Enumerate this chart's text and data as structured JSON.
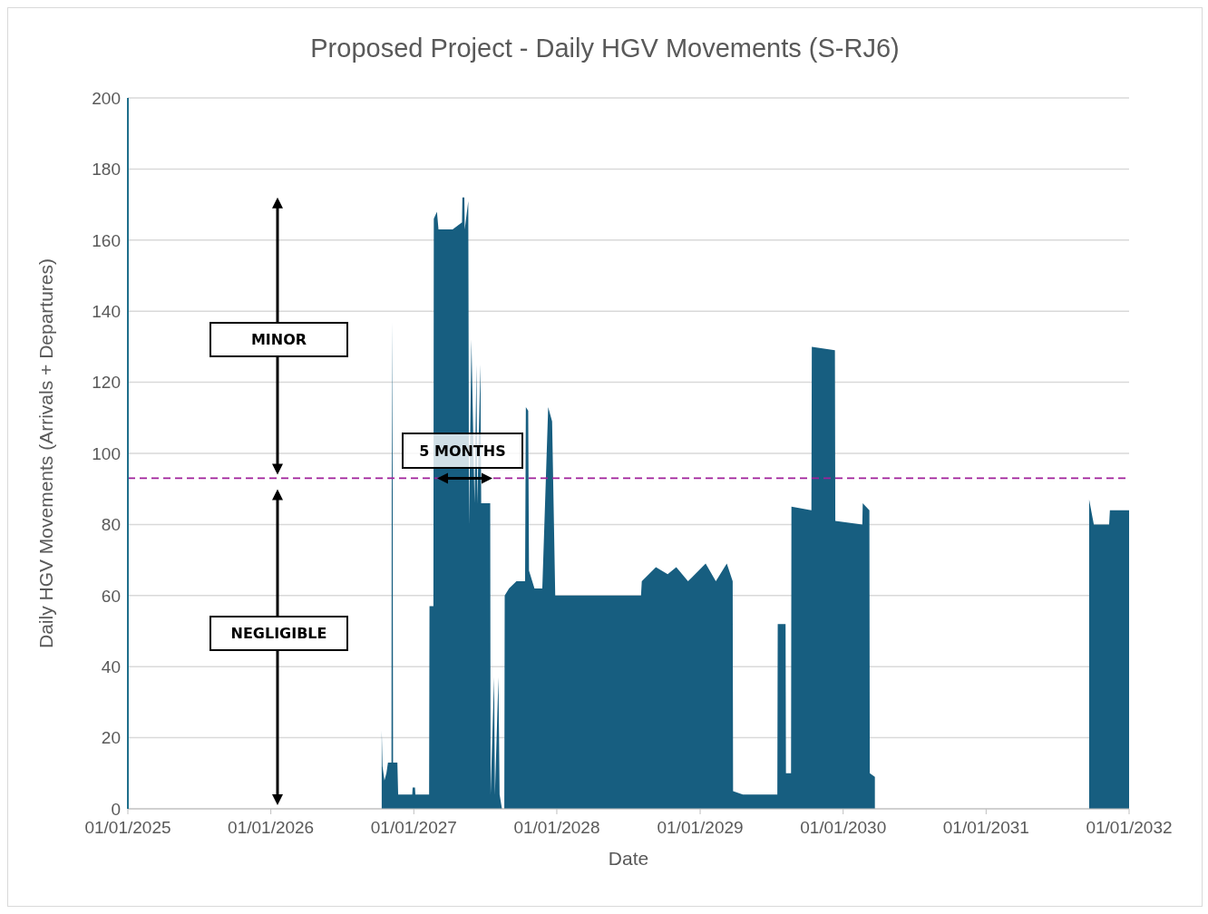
{
  "chart_data": {
    "type": "area",
    "title": "Proposed Project - Daily HGV Movements (S-RJ6)",
    "xlabel": "Date",
    "ylabel": "Daily HGV Movements (Arrivals + Departures)",
    "color": "#175e80",
    "grid": "y",
    "legend": false,
    "xlim": [
      "2025-01-01",
      "2032-01-01"
    ],
    "xticks": [
      {
        "value": "2025-01-01",
        "label": "01/01/2025"
      },
      {
        "value": "2026-01-01",
        "label": "01/01/2026"
      },
      {
        "value": "2027-01-01",
        "label": "01/01/2027"
      },
      {
        "value": "2028-01-01",
        "label": "01/01/2028"
      },
      {
        "value": "2029-01-01",
        "label": "01/01/2029"
      },
      {
        "value": "2030-01-01",
        "label": "01/01/2030"
      },
      {
        "value": "2031-01-01",
        "label": "01/01/2031"
      },
      {
        "value": "2032-01-01",
        "label": "01/01/2032"
      }
    ],
    "ylim": [
      0,
      200
    ],
    "yticks": [
      0,
      20,
      40,
      60,
      80,
      100,
      120,
      140,
      160,
      180,
      200
    ],
    "ref_lines": [
      {
        "axis": "y",
        "value": 93,
        "color": "#a0209a",
        "line_style": "dashed"
      }
    ],
    "annotations": [
      "MINOR",
      "NEGLIGIBLE",
      "5 MONTHS"
    ],
    "x": [
      "2026-10-11",
      "2026-10-13",
      "2026-10-18",
      "2026-10-23",
      "2026-10-27",
      "2026-11-05",
      "2026-11-06",
      "2026-11-08",
      "2026-11-09",
      "2026-11-20",
      "2026-11-22",
      "2026-12-28",
      "2026-12-29",
      "2027-01-04",
      "2027-01-05",
      "2027-02-09",
      "2027-02-10",
      "2027-02-20",
      "2027-02-21",
      "2027-03-01",
      "2027-03-05",
      "2027-04-10",
      "2027-05-04",
      "2027-05-05",
      "2027-05-10",
      "2027-05-11",
      "2027-05-20",
      "2027-05-22",
      "2027-05-28",
      "2027-06-05",
      "2027-06-10",
      "2027-06-12",
      "2027-06-20",
      "2027-06-22",
      "2027-07-15",
      "2027-07-16",
      "2027-07-25",
      "2027-07-27",
      "2027-08-05",
      "2027-08-08",
      "2027-08-14",
      "2027-08-20",
      "2027-08-21",
      "2027-09-01",
      "2027-09-20",
      "2027-10-12",
      "2027-10-14",
      "2027-10-20",
      "2027-10-22",
      "2027-11-05",
      "2027-11-25",
      "2027-12-10",
      "2027-12-20",
      "2027-12-28",
      "2028-08-03",
      "2028-08-05",
      "2028-09-10",
      "2028-10-10",
      "2028-11-01",
      "2028-12-01",
      "2029-01-15",
      "2029-02-10",
      "2029-03-10",
      "2029-03-25",
      "2029-03-26",
      "2029-04-20",
      "2029-07-17",
      "2029-07-18",
      "2029-08-07",
      "2029-08-08",
      "2029-08-21",
      "2029-08-22",
      "2029-10-12",
      "2029-10-13",
      "2029-12-11",
      "2029-12-12",
      "2030-02-19",
      "2030-02-20",
      "2030-03-09",
      "2030-03-10",
      "2030-03-23",
      "2030-06-01",
      "2031-09-21",
      "2031-10-03",
      "2031-11-11",
      "2031-11-13",
      "2032-01-01"
    ],
    "values": [
      22,
      12,
      8,
      10,
      13,
      13,
      137,
      90,
      13,
      13,
      4,
      4,
      6,
      6,
      4,
      4,
      57,
      57,
      166,
      168,
      163,
      163,
      165,
      172,
      172,
      163,
      171,
      80,
      132,
      86,
      125,
      86,
      125,
      86,
      86,
      4,
      37,
      4,
      37,
      4,
      0,
      0,
      60,
      62,
      64,
      64,
      113,
      112,
      67,
      62,
      62,
      113,
      109,
      60,
      60,
      64,
      68,
      66,
      68,
      64,
      69,
      64,
      69,
      64,
      5,
      4,
      4,
      52,
      52,
      10,
      10,
      85,
      84,
      130,
      129,
      81,
      80,
      86,
      84,
      10,
      9,
      null,
      87,
      80,
      80,
      84,
      84
    ]
  }
}
